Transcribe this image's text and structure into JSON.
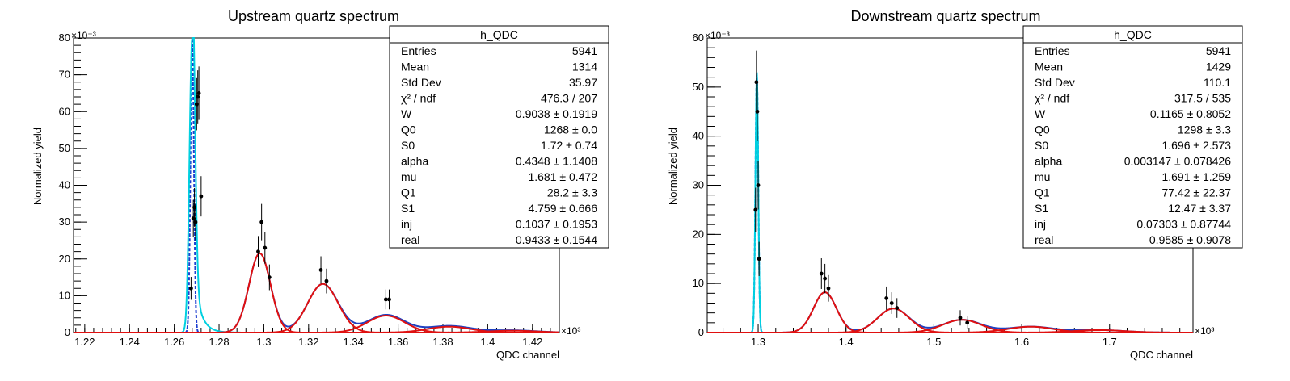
{
  "chart_data": [
    {
      "type": "scatter",
      "title": "Upstream quartz spectrum",
      "xlabel": "QDC channel",
      "ylabel": "Normalized yield",
      "x_multiplier": "×10³",
      "y_multiplier": "×10⁻³",
      "xlim": [
        1.215,
        1.432
      ],
      "ylim": [
        0,
        80
      ],
      "x_ticks": [
        1.22,
        1.24,
        1.26,
        1.28,
        1.3,
        1.32,
        1.34,
        1.36,
        1.38,
        1.4,
        1.42
      ],
      "x_tick_labels": [
        "1.22",
        "1.24",
        "1.26",
        "1.28",
        "1.3",
        "1.32",
        "1.34",
        "1.36",
        "1.38",
        "1.4",
        "1.42"
      ],
      "y_ticks": [
        0,
        10,
        20,
        30,
        40,
        50,
        60,
        70,
        80
      ],
      "y_tick_labels": [
        "0",
        "10",
        "20",
        "30",
        "40",
        "50",
        "60",
        "70",
        "80"
      ],
      "grid": false,
      "stats_box": {
        "name": "h_QDC",
        "rows": [
          {
            "label": "Entries",
            "value": "5941"
          },
          {
            "label": "Mean",
            "value": "1314"
          },
          {
            "label": "Std Dev",
            "value": "35.97"
          },
          {
            "label": "χ² / ndf",
            "value": "476.3 / 207"
          },
          {
            "label": "W",
            "value": "0.9038 ± 0.1919"
          },
          {
            "label": "Q0",
            "value": "1268 ± 0.0"
          },
          {
            "label": "S0",
            "value": "1.72 ± 0.74"
          },
          {
            "label": "alpha",
            "value": "0.4348 ± 1.1408"
          },
          {
            "label": "mu",
            "value": "1.681 ± 0.472"
          },
          {
            "label": "Q1",
            "value": "28.2 ± 3.3"
          },
          {
            "label": "S1",
            "value": "4.759 ± 0.666"
          },
          {
            "label": "inj",
            "value": "0.1037 ± 0.1953"
          },
          {
            "label": "real",
            "value": "0.9433 ± 0.1544"
          }
        ]
      },
      "series": [
        {
          "kind": "points",
          "color": "#000000",
          "x": [
            1.2675,
            1.2685,
            1.269,
            1.2695,
            1.27,
            1.2705,
            1.271,
            1.272,
            1.2975,
            1.299,
            1.3005,
            1.3025,
            1.3255,
            1.328,
            1.3545,
            1.356
          ],
          "y": [
            12,
            31,
            34,
            30,
            62,
            64,
            65,
            37,
            22,
            30,
            23,
            15,
            17,
            14,
            9,
            9
          ]
        },
        {
          "kind": "curve",
          "color": "#1f3fd0",
          "dashed": true,
          "peaks": [
            {
              "mean": 1.268,
              "sigma": 0.00075,
              "amp": 80
            }
          ]
        },
        {
          "kind": "curve",
          "color": "#00d0e0",
          "dashed": false,
          "peaks": [
            {
              "mean": 1.268,
              "sigma": 0.0012,
              "amp": 80,
              "tail": 0.25,
              "tail_decay": 0.003
            }
          ]
        },
        {
          "kind": "curve",
          "color": "#2040c0",
          "dashed": false,
          "peaks": [
            {
              "mean": 1.2982,
              "sigma": 0.0048,
              "amp": 21.5
            },
            {
              "mean": 1.3264,
              "sigma": 0.0068,
              "amp": 13.2
            },
            {
              "mean": 1.3546,
              "sigma": 0.0083,
              "amp": 4.8
            },
            {
              "mean": 1.3828,
              "sigma": 0.0096,
              "amp": 1.8
            },
            {
              "mean": 1.411,
              "sigma": 0.0108,
              "amp": 0.6
            }
          ]
        },
        {
          "kind": "curve",
          "color": "#e01010",
          "dashed": false,
          "separate": true,
          "peaks": [
            {
              "mean": 1.2982,
              "sigma": 0.0048,
              "amp": 21.5
            },
            {
              "mean": 1.3264,
              "sigma": 0.0068,
              "amp": 13.2
            },
            {
              "mean": 1.3546,
              "sigma": 0.0083,
              "amp": 4.6
            },
            {
              "mean": 1.3828,
              "sigma": 0.0096,
              "amp": 1.6
            },
            {
              "mean": 1.411,
              "sigma": 0.0108,
              "amp": 0.5
            }
          ]
        }
      ]
    },
    {
      "type": "scatter",
      "title": "Downstream quartz spectrum",
      "xlabel": "QDC channel",
      "ylabel": "Normalized yield",
      "x_multiplier": "×10³",
      "y_multiplier": "×10⁻³",
      "xlim": [
        1.242,
        1.795
      ],
      "ylim": [
        0,
        60
      ],
      "x_ticks": [
        1.3,
        1.4,
        1.5,
        1.6,
        1.7
      ],
      "x_tick_labels": [
        "1.3",
        "1.4",
        "1.5",
        "1.6",
        "1.7"
      ],
      "y_ticks": [
        0,
        10,
        20,
        30,
        40,
        50,
        60
      ],
      "y_tick_labels": [
        "0",
        "10",
        "20",
        "30",
        "40",
        "50",
        "60"
      ],
      "grid": false,
      "stats_box": {
        "name": "h_QDC",
        "rows": [
          {
            "label": "Entries",
            "value": "5941"
          },
          {
            "label": "Mean",
            "value": "1429"
          },
          {
            "label": "Std Dev",
            "value": "110.1"
          },
          {
            "label": "χ² / ndf",
            "value": "317.5 / 535"
          },
          {
            "label": "W",
            "value": "0.1165 ± 0.8052"
          },
          {
            "label": "Q0",
            "value": "1298 ± 3.3"
          },
          {
            "label": "S0",
            "value": "1.696 ± 2.573"
          },
          {
            "label": "alpha",
            "value": "0.003147 ± 0.078426"
          },
          {
            "label": "mu",
            "value": "1.691 ± 1.259"
          },
          {
            "label": "Q1",
            "value": "77.42 ± 22.37"
          },
          {
            "label": "S1",
            "value": "12.47 ± 3.37"
          },
          {
            "label": "inj",
            "value": "0.07303 ± 0.87744"
          },
          {
            "label": "real",
            "value": "0.9585 ± 0.9078"
          }
        ]
      },
      "series": [
        {
          "kind": "points",
          "color": "#000000",
          "x": [
            1.297,
            1.298,
            1.299,
            1.3,
            1.301,
            1.372,
            1.376,
            1.38,
            1.446,
            1.452,
            1.458,
            1.53,
            1.538
          ],
          "y": [
            25,
            51,
            45,
            30,
            15,
            12,
            11,
            9,
            7,
            6,
            5,
            3,
            2
          ]
        },
        {
          "kind": "curve",
          "color": "#1f3fd0",
          "dashed": true,
          "peaks": [
            {
              "mean": 1.2985,
              "sigma": 0.0016,
              "amp": 53
            }
          ]
        },
        {
          "kind": "curve",
          "color": "#00d0e0",
          "dashed": false,
          "peaks": [
            {
              "mean": 1.2985,
              "sigma": 0.0016,
              "amp": 53
            }
          ]
        },
        {
          "kind": "curve",
          "color": "#2040c0",
          "dashed": false,
          "peaks": [
            {
              "mean": 1.376,
              "sigma": 0.013,
              "amp": 8.2
            },
            {
              "mean": 1.454,
              "sigma": 0.018,
              "amp": 4.9
            },
            {
              "mean": 1.532,
              "sigma": 0.022,
              "amp": 2.6
            },
            {
              "mean": 1.61,
              "sigma": 0.026,
              "amp": 1.2
            },
            {
              "mean": 1.688,
              "sigma": 0.029,
              "amp": 0.5
            }
          ]
        },
        {
          "kind": "curve",
          "color": "#e01010",
          "dashed": false,
          "separate": true,
          "peaks": [
            {
              "mean": 1.376,
              "sigma": 0.013,
              "amp": 8.2
            },
            {
              "mean": 1.454,
              "sigma": 0.018,
              "amp": 4.9
            },
            {
              "mean": 1.532,
              "sigma": 0.022,
              "amp": 2.6
            },
            {
              "mean": 1.61,
              "sigma": 0.026,
              "amp": 1.2
            },
            {
              "mean": 1.688,
              "sigma": 0.029,
              "amp": 0.5
            }
          ]
        }
      ]
    }
  ]
}
